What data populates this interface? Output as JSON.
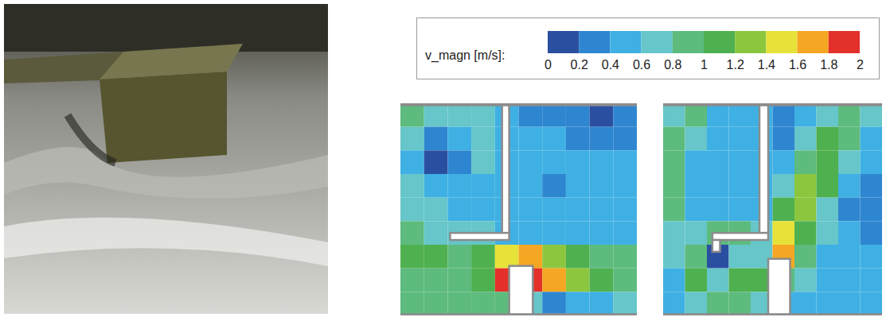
{
  "colorbar": {
    "label": "v_magn [m/s]:",
    "range": [
      0,
      2
    ],
    "ticks": [
      0,
      0.2,
      0.4,
      0.6,
      0.8,
      1,
      1.2,
      1.4,
      1.6,
      1.8,
      2
    ],
    "colors": [
      "#2b4fa0",
      "#2f86d0",
      "#3fb0e3",
      "#66c6c9",
      "#5dbb7e",
      "#4fb04f",
      "#8cc63f",
      "#e6e23a",
      "#f5a623",
      "#e4302a"
    ]
  },
  "chart_data": [
    {
      "type": "heatmap",
      "tick_labels": false,
      "cells": [
        [
          0.8,
          0.7,
          0.6,
          0.6,
          0.4,
          0.3,
          0.2,
          0.2,
          0.1,
          0.2
        ],
        [
          0.6,
          0.2,
          0.4,
          0.6,
          0.4,
          0.4,
          0.4,
          0.3,
          0.3,
          0.3
        ],
        [
          0.5,
          0.1,
          0.3,
          0.6,
          0.4,
          0.4,
          0.4,
          0.4,
          0.4,
          0.4
        ],
        [
          0.6,
          0.5,
          0.4,
          0.5,
          0.4,
          0.4,
          0.3,
          0.4,
          0.4,
          0.4
        ],
        [
          0.7,
          0.6,
          0.5,
          0.5,
          0.4,
          0.4,
          0.4,
          0.4,
          0.4,
          0.4
        ],
        [
          0.8,
          0.7,
          0.6,
          0.6,
          0.5,
          0.4,
          0.4,
          0.4,
          0.4,
          0.4
        ],
        [
          1.0,
          1.0,
          0.9,
          1.0,
          1.4,
          1.6,
          1.2,
          1.0,
          0.9,
          0.9
        ],
        [
          0.9,
          0.8,
          0.9,
          1.0,
          1.9,
          1.8,
          1.6,
          1.2,
          1.0,
          0.9
        ],
        [
          0.8,
          0.8,
          0.9,
          0.8,
          0.8,
          0.6,
          0.2,
          0.4,
          0.5,
          0.6
        ]
      ]
    },
    {
      "type": "heatmap",
      "tick_labels": false,
      "cells": [
        [
          0.6,
          0.8,
          0.5,
          0.4,
          0.4,
          0.2,
          0.4,
          0.7,
          0.8,
          0.6
        ],
        [
          0.8,
          0.6,
          0.4,
          0.4,
          0.4,
          0.3,
          0.6,
          1.0,
          0.8,
          0.5
        ],
        [
          0.9,
          0.5,
          0.4,
          0.4,
          0.4,
          0.5,
          0.9,
          1.1,
          0.6,
          0.4
        ],
        [
          0.9,
          0.5,
          0.4,
          0.4,
          0.4,
          0.7,
          1.2,
          1.0,
          0.4,
          0.2
        ],
        [
          0.8,
          0.5,
          0.5,
          0.5,
          0.4,
          1.0,
          1.2,
          0.7,
          0.3,
          0.2
        ],
        [
          0.7,
          0.6,
          0.9,
          0.8,
          0.6,
          1.4,
          1.0,
          0.6,
          0.4,
          0.3
        ],
        [
          0.6,
          0.9,
          0.1,
          0.6,
          0.7,
          1.6,
          0.9,
          0.5,
          0.4,
          0.4
        ],
        [
          0.5,
          1.0,
          0.6,
          1.0,
          1.0,
          0.9,
          0.6,
          0.5,
          0.5,
          0.5
        ],
        [
          0.4,
          0.7,
          0.9,
          0.8,
          0.6,
          0.4,
          0.4,
          0.5,
          0.5,
          0.5
        ]
      ]
    }
  ]
}
